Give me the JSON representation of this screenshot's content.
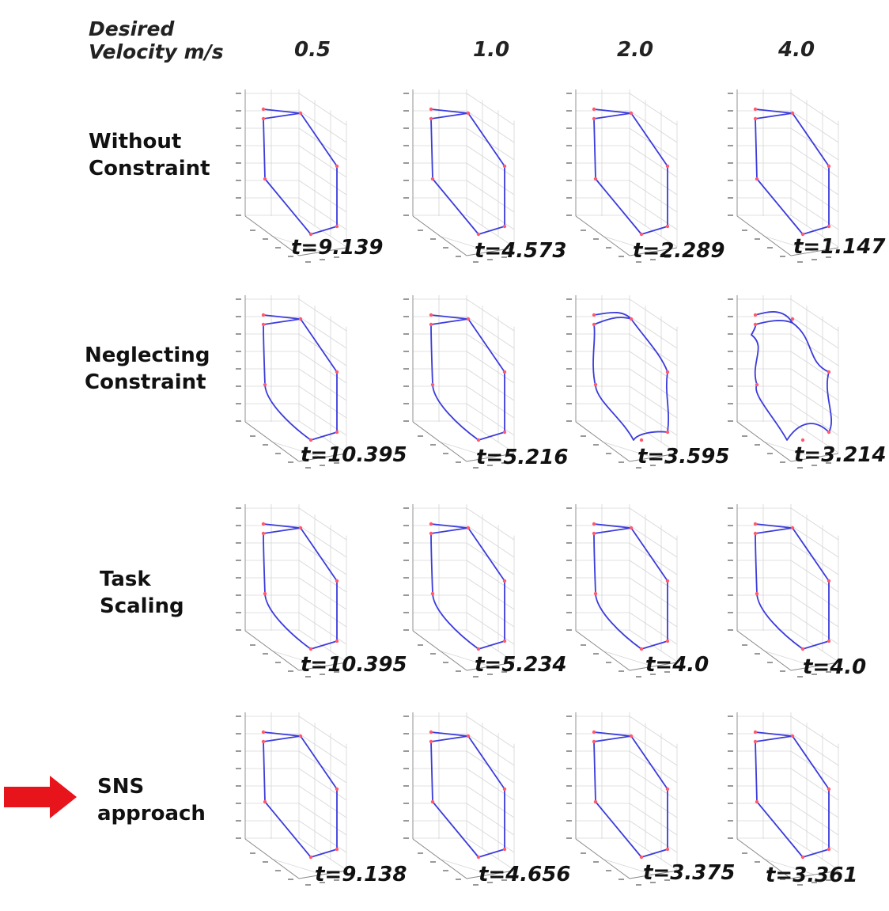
{
  "header": {
    "label_line1": "Desired",
    "label_line2": "Velocity m/s"
  },
  "velocities": [
    "0.5",
    "1.0",
    "2.0",
    "4.0"
  ],
  "rows": [
    {
      "label_line1": "Without",
      "label_line2": "Constraint",
      "times": [
        "t=9.139",
        "t=4.573",
        "t=2.289",
        "t=1.147"
      ]
    },
    {
      "label_line1": "Neglecting",
      "label_line2": "Constraint",
      "times": [
        "t=10.395",
        "t=5.216",
        "t=3.595",
        "t=3.214"
      ]
    },
    {
      "label_line1": "Task",
      "label_line2": "Scaling",
      "times": [
        "t=10.395",
        "t=5.234",
        "t=4.0",
        "t=4.0"
      ]
    },
    {
      "label_line1": "SNS",
      "label_line2": "approach",
      "times": [
        "t=9.138",
        "t=4.656",
        "t=3.375",
        "t=3.361"
      ]
    }
  ],
  "colors": {
    "path": "#3b3bdc",
    "waypoint": "#ff5a6e",
    "arrow": "#e8141c",
    "grid": "#d6d6d6"
  },
  "icons": {
    "pointer": "red-arrow-icon"
  }
}
